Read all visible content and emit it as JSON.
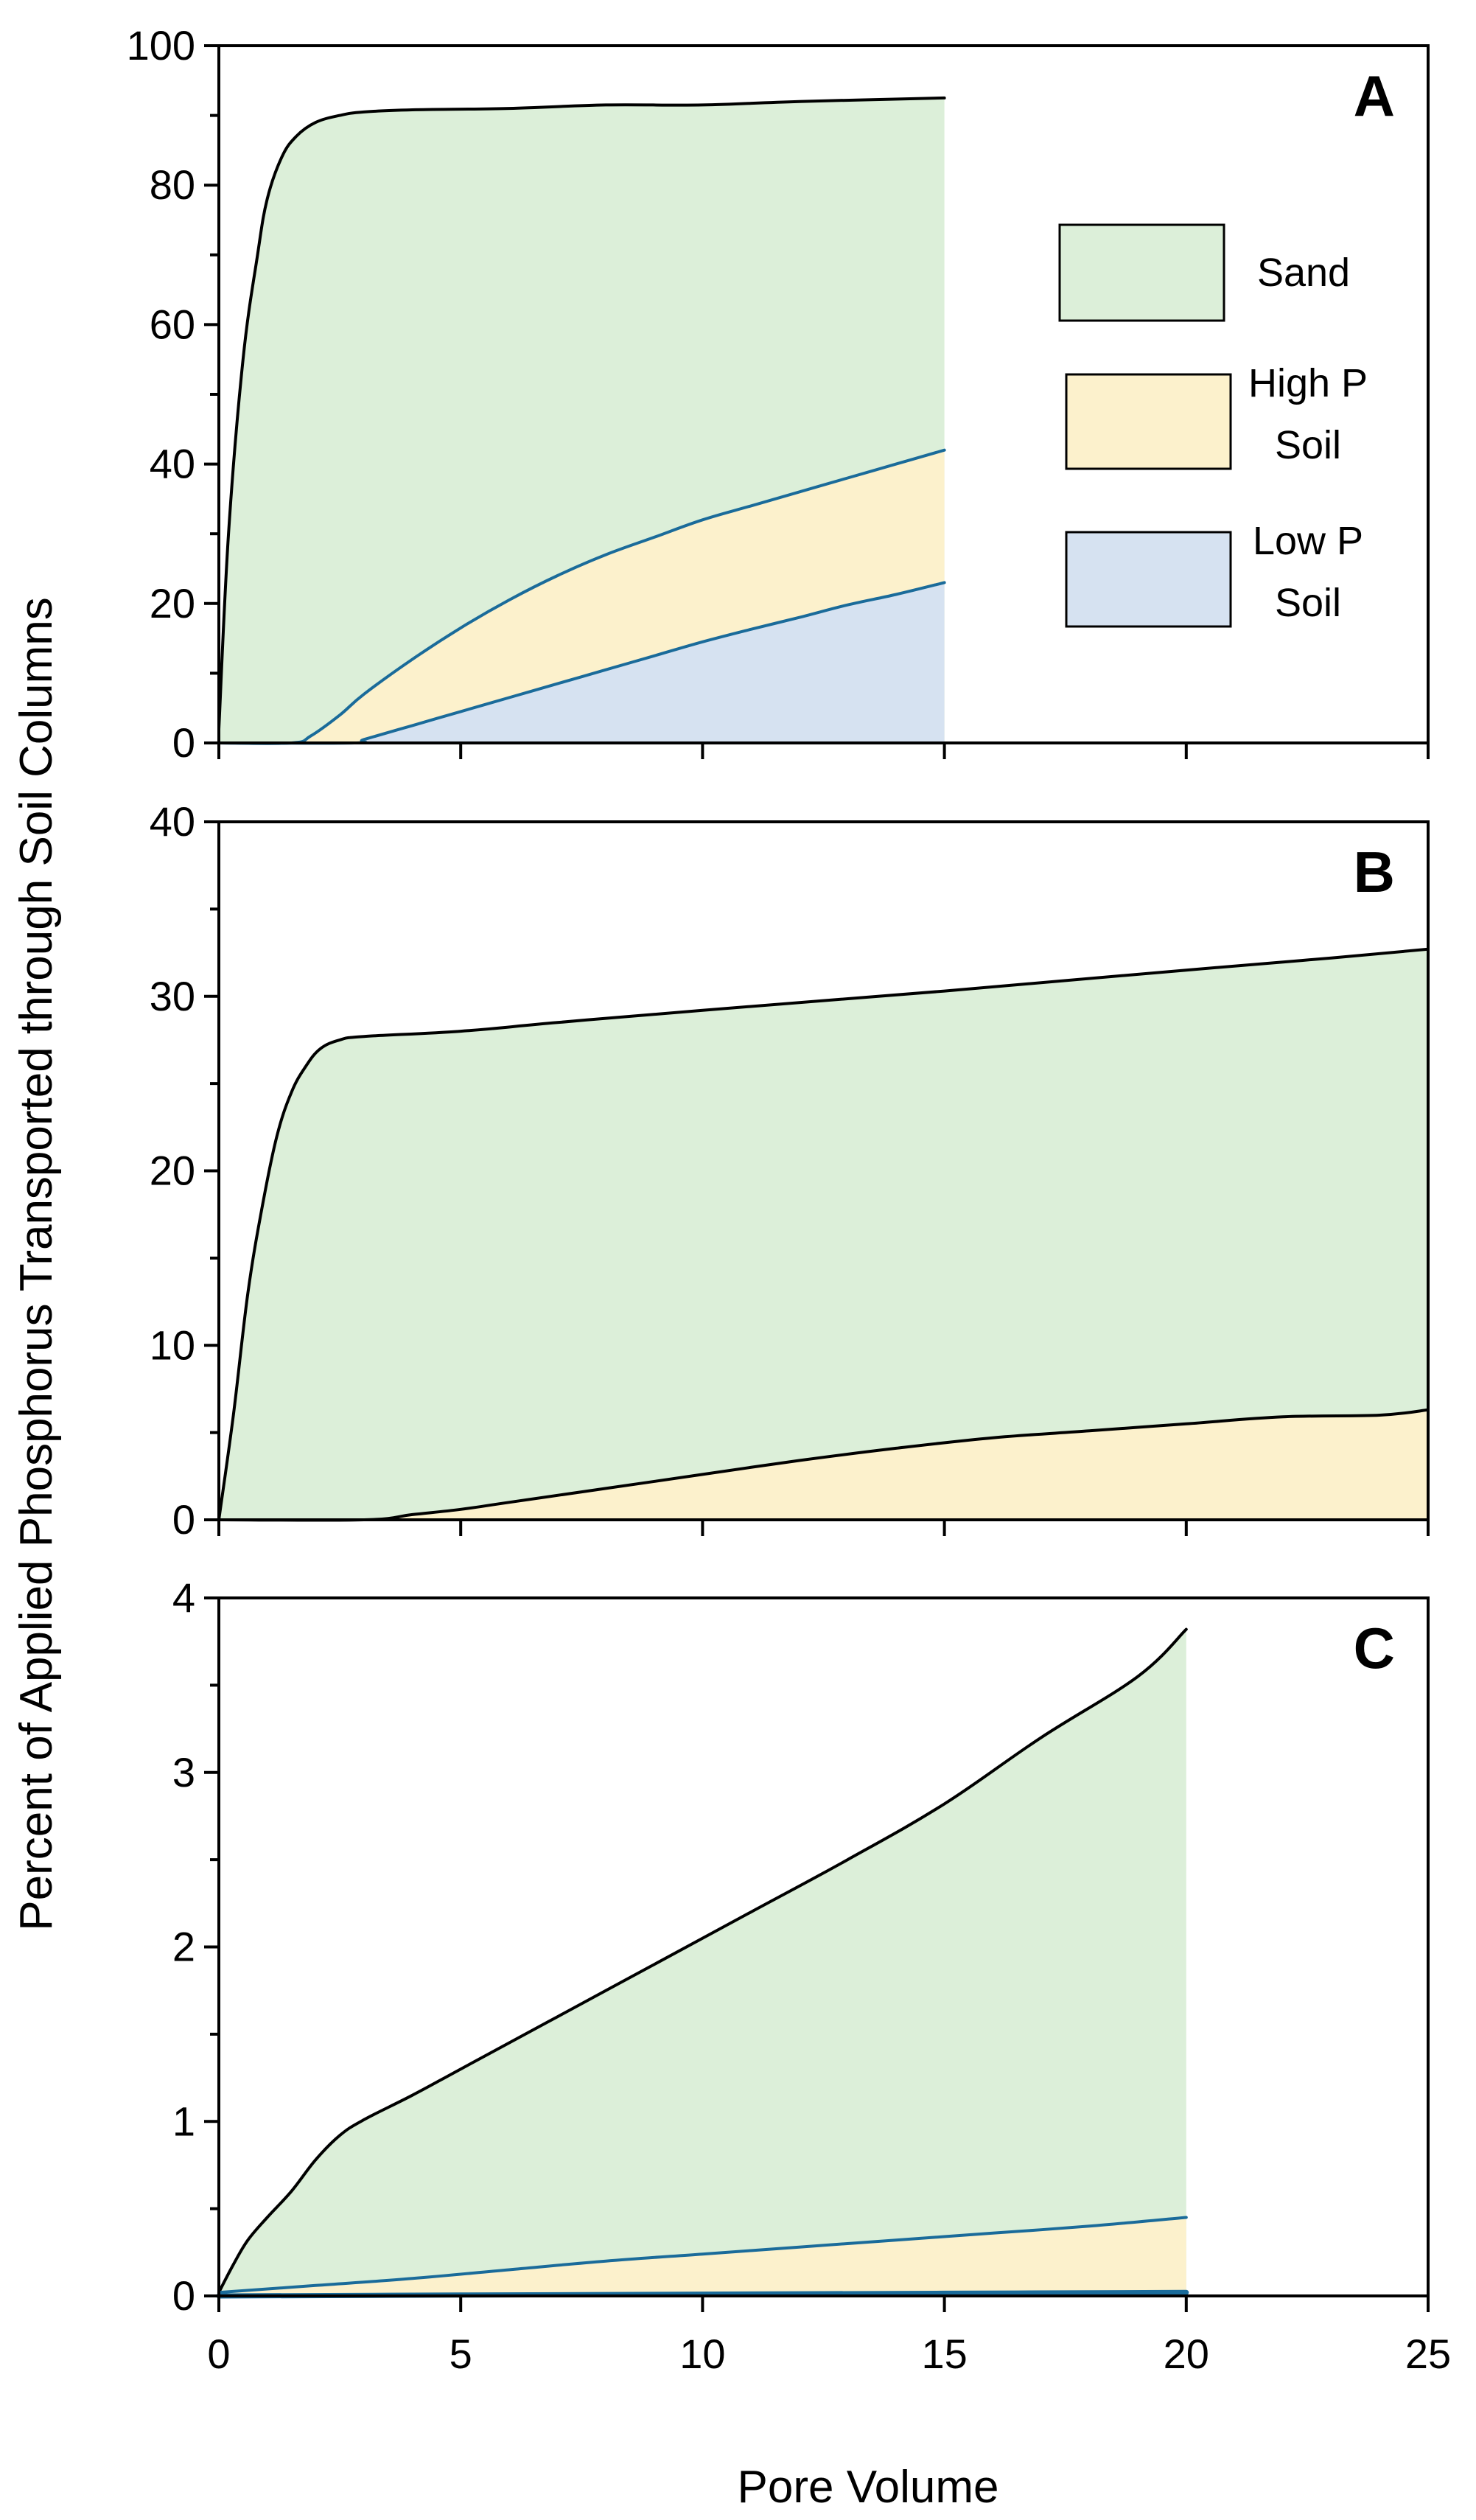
{
  "chart_data": {
    "type": "area",
    "xlabel": "Pore Volume",
    "ylabel": "Percent of Applied Phosphorus Transported through Soil Columns",
    "shared_x_axis": true,
    "xlim": [
      0,
      25
    ],
    "xticks": [
      "0",
      "5",
      "10",
      "15",
      "20",
      "25"
    ],
    "colors": {
      "sand": "#dcefd9",
      "high_p": "#fcf1cc",
      "low_p": "#d6e2f1",
      "sand_line": "#000000",
      "low_line": "#1a6b9a"
    },
    "legend": {
      "placement": "right, inside panel A",
      "entries": [
        {
          "key": "sand",
          "lines": [
            "Sand"
          ]
        },
        {
          "key": "high_p",
          "lines": [
            "High P",
            "Soil"
          ]
        },
        {
          "key": "low_p",
          "lines": [
            "Low P",
            "Soil"
          ]
        }
      ]
    },
    "panels": [
      {
        "label": "A",
        "ylim": [
          0,
          100
        ],
        "yticks": [
          "0",
          "20",
          "40",
          "60",
          "80",
          "100"
        ],
        "series": [
          {
            "name": "Sand",
            "key": "sand",
            "x": [
              0,
              0.2,
              0.5,
              0.8,
              1.0,
              1.3,
              1.6,
              2.0,
              2.5,
              3.0,
              4.0,
              6.0,
              8.0,
              10.0,
              12.0,
              15.0
            ],
            "y": [
              2,
              30,
              55,
              70,
              78,
              84,
              87,
              89,
              90,
              90.5,
              90.8,
              91,
              91.5,
              91.5,
              92,
              92.5
            ]
          },
          {
            "name": "High P Soil",
            "key": "high_p",
            "x": [
              0,
              1.5,
              1.9,
              2.5,
              3.0,
              4.0,
              5.0,
              6.0,
              7.0,
              8.0,
              9.0,
              10.0,
              11.0,
              12.0,
              13.0,
              14.0,
              15.0
            ],
            "y": [
              0,
              0,
              1,
              4,
              7,
              12,
              16.5,
              20.5,
              24,
              27,
              29.5,
              32,
              34,
              36,
              38,
              40,
              42
            ]
          },
          {
            "name": "Low P Soil",
            "key": "low_p",
            "x": [
              0,
              2.8,
              3.0,
              4.0,
              5.0,
              6.0,
              7.0,
              8.0,
              9.0,
              10.0,
              11.0,
              12.0,
              13.0,
              14.0,
              15.0
            ],
            "y": [
              0,
              0,
              0.5,
              2.5,
              4.5,
              6.5,
              8.5,
              10.5,
              12.5,
              14.5,
              16.3,
              18,
              19.8,
              21.3,
              23
            ]
          }
        ]
      },
      {
        "label": "B",
        "ylim": [
          0,
          40
        ],
        "yticks": [
          "0",
          "10",
          "20",
          "30",
          "40"
        ],
        "series": [
          {
            "name": "Sand",
            "key": "sand",
            "x": [
              0,
              0.3,
              0.6,
              0.9,
              1.2,
              1.5,
              1.8,
              2.1,
              2.5,
              3.0,
              5.0,
              7.0,
              10.0,
              15.0,
              20.0,
              23.0,
              25.0
            ],
            "y": [
              0,
              6,
              13,
              18,
              22,
              24.5,
              26,
              27,
              27.5,
              27.7,
              28,
              28.5,
              29.2,
              30.3,
              31.5,
              32.2,
              32.7
            ]
          },
          {
            "name": "High P Soil",
            "key": "high_p",
            "x": [
              0,
              3.0,
              4.0,
              5.0,
              6.0,
              8.0,
              10.0,
              12.0,
              14.0,
              16.0,
              18.0,
              20.0,
              22.0,
              24.0,
              25.0
            ],
            "y": [
              0,
              0,
              0.3,
              0.6,
              1.0,
              1.8,
              2.6,
              3.4,
              4.1,
              4.7,
              5.1,
              5.5,
              5.9,
              6.0,
              6.3
            ]
          }
        ]
      },
      {
        "label": "C",
        "ylim": [
          0,
          4
        ],
        "yticks": [
          "0",
          "1",
          "2",
          "3",
          "4"
        ],
        "series": [
          {
            "name": "Sand",
            "key": "sand",
            "x": [
              0,
              0.3,
              0.6,
              1.0,
              1.5,
              2.0,
              2.5,
              3.0,
              4.0,
              5.0,
              7.0,
              9.0,
              11.0,
              13.0,
              15.0,
              17.0,
              19.0,
              20.0
            ],
            "y": [
              0.02,
              0.18,
              0.32,
              0.45,
              0.6,
              0.78,
              0.92,
              1.01,
              1.15,
              1.3,
              1.6,
              1.9,
              2.2,
              2.5,
              2.82,
              3.2,
              3.55,
              3.82
            ]
          },
          {
            "name": "High P Soil",
            "key": "high_p",
            "x": [
              0,
              2.0,
              4.0,
              6.0,
              8.0,
              10.0,
              12.0,
              14.0,
              16.0,
              18.0,
              20.0
            ],
            "y": [
              0.02,
              0.06,
              0.1,
              0.15,
              0.2,
              0.24,
              0.28,
              0.32,
              0.36,
              0.4,
              0.45
            ]
          },
          {
            "name": "Low P Soil",
            "key": "low_p",
            "x": [
              0,
              5.0,
              10.0,
              15.0,
              20.0
            ],
            "y": [
              0.0,
              0.005,
              0.01,
              0.015,
              0.02
            ]
          }
        ]
      }
    ]
  }
}
